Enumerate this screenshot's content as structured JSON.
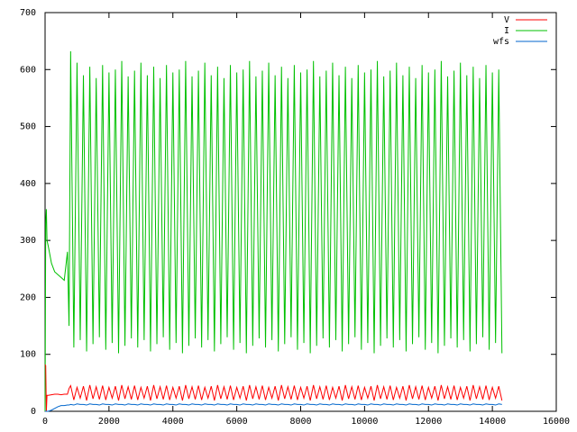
{
  "chart_data": {
    "type": "line",
    "x": [
      0,
      20,
      40,
      60,
      100,
      200,
      300,
      400,
      500,
      600,
      700,
      750,
      800,
      900,
      1000,
      1100,
      1200,
      1300,
      1400,
      1500,
      1600,
      1700,
      1800,
      1900,
      2000,
      2100,
      2200,
      2300,
      2400,
      2500,
      2600,
      2700,
      2800,
      2900,
      3000,
      3100,
      3200,
      3300,
      3400,
      3500,
      3600,
      3700,
      3800,
      3900,
      4000,
      4100,
      4200,
      4300,
      4400,
      4500,
      4600,
      4700,
      4800,
      4900,
      5000,
      5100,
      5200,
      5300,
      5400,
      5500,
      5600,
      5700,
      5800,
      5900,
      6000,
      6100,
      6200,
      6300,
      6400,
      6500,
      6600,
      6700,
      6800,
      6900,
      7000,
      7100,
      7200,
      7300,
      7400,
      7500,
      7600,
      7700,
      7800,
      7900,
      8000,
      8100,
      8200,
      8300,
      8400,
      8500,
      8600,
      8700,
      8800,
      8900,
      9000,
      9100,
      9200,
      9300,
      9400,
      9500,
      9600,
      9700,
      9800,
      9900,
      10000,
      10100,
      10200,
      10300,
      10400,
      10500,
      10600,
      10700,
      10800,
      10900,
      11000,
      11100,
      11200,
      11300,
      11400,
      11500,
      11600,
      11700,
      11800,
      11900,
      12000,
      12100,
      12200,
      12300,
      12400,
      12500,
      12600,
      12700,
      12800,
      12900,
      13000,
      13100,
      13200,
      13300,
      13400,
      13500,
      13600,
      13700,
      13800,
      13900,
      14000,
      14100,
      14200,
      14300
    ],
    "series": [
      {
        "name": "V",
        "color": "#ff0000",
        "values": [
          82,
          80,
          0,
          28,
          28,
          29,
          30,
          30,
          29,
          30,
          30,
          40,
          45,
          20,
          42,
          23,
          44,
          19,
          46,
          22,
          43,
          21,
          45,
          20,
          42,
          23,
          44,
          19,
          46,
          22,
          43,
          21,
          45,
          20,
          42,
          23,
          44,
          19,
          46,
          22,
          43,
          21,
          45,
          20,
          42,
          23,
          44,
          19,
          46,
          22,
          43,
          21,
          45,
          20,
          42,
          23,
          44,
          19,
          46,
          22,
          43,
          21,
          45,
          20,
          42,
          23,
          44,
          19,
          46,
          22,
          43,
          21,
          45,
          20,
          42,
          23,
          44,
          19,
          46,
          22,
          43,
          21,
          45,
          20,
          42,
          23,
          44,
          19,
          46,
          22,
          43,
          21,
          45,
          20,
          42,
          23,
          44,
          19,
          46,
          22,
          43,
          21,
          45,
          20,
          42,
          23,
          44,
          19,
          46,
          22,
          43,
          21,
          45,
          20,
          42,
          23,
          44,
          19,
          46,
          22,
          43,
          21,
          45,
          20,
          42,
          23,
          44,
          19,
          46,
          22,
          43,
          21,
          45,
          20,
          42,
          23,
          44,
          19,
          46,
          22,
          43,
          21,
          45,
          20,
          42,
          23,
          44,
          19
        ]
      },
      {
        "name": "I",
        "color": "#00c000",
        "values": [
          0,
          330,
          355,
          300,
          290,
          260,
          245,
          240,
          235,
          230,
          280,
          150,
          632,
          112,
          612,
          125,
          590,
          105,
          605,
          118,
          585,
          130,
          608,
          108,
          595,
          120,
          600,
          102,
          615,
          115,
          588,
          128,
          598,
          112,
          612,
          125,
          590,
          105,
          605,
          118,
          585,
          130,
          608,
          108,
          595,
          120,
          600,
          102,
          615,
          115,
          588,
          128,
          598,
          112,
          612,
          125,
          590,
          105,
          605,
          118,
          585,
          130,
          608,
          108,
          595,
          120,
          600,
          102,
          615,
          115,
          588,
          128,
          598,
          112,
          612,
          125,
          590,
          105,
          605,
          118,
          585,
          130,
          608,
          108,
          595,
          120,
          600,
          102,
          615,
          115,
          588,
          128,
          598,
          112,
          612,
          125,
          590,
          105,
          605,
          118,
          585,
          130,
          608,
          108,
          595,
          120,
          600,
          102,
          615,
          115,
          588,
          128,
          598,
          112,
          612,
          125,
          590,
          105,
          605,
          118,
          585,
          130,
          608,
          108,
          595,
          120,
          600,
          102,
          615,
          115,
          588,
          128,
          598,
          112,
          612,
          125,
          590,
          105,
          605,
          118,
          585,
          130,
          608,
          108,
          595,
          120,
          600,
          102
        ]
      },
      {
        "name": "wfs",
        "color": "#0066cc",
        "values": [
          0,
          0,
          0,
          0,
          0,
          2,
          5,
          8,
          10,
          10,
          11,
          11,
          12,
          11,
          13,
          12,
          12,
          11,
          13,
          12,
          12,
          11,
          13,
          12,
          12,
          11,
          13,
          12,
          12,
          11,
          13,
          12,
          12,
          11,
          13,
          12,
          12,
          11,
          13,
          12,
          12,
          11,
          13,
          12,
          12,
          11,
          13,
          12,
          12,
          11,
          13,
          12,
          12,
          11,
          13,
          12,
          12,
          11,
          13,
          12,
          12,
          11,
          13,
          12,
          12,
          11,
          13,
          12,
          12,
          11,
          13,
          12,
          12,
          11,
          13,
          12,
          12,
          11,
          13,
          12,
          12,
          11,
          13,
          12,
          12,
          11,
          13,
          12,
          12,
          11,
          13,
          12,
          12,
          11,
          13,
          12,
          12,
          11,
          13,
          12,
          12,
          11,
          13,
          12,
          12,
          11,
          13,
          12,
          12,
          11,
          13,
          12,
          12,
          11,
          13,
          12,
          12,
          11,
          13,
          12,
          12,
          11,
          13,
          12,
          12,
          11,
          13,
          12,
          12,
          11,
          13,
          12,
          12,
          11,
          13,
          12,
          12,
          11,
          13,
          12,
          12,
          11,
          13,
          12,
          12,
          11,
          13,
          12
        ]
      }
    ],
    "xlim": [
      0,
      16000
    ],
    "xticks": [
      0,
      2000,
      4000,
      6000,
      8000,
      10000,
      12000,
      14000,
      16000
    ],
    "ylim": [
      0,
      700
    ],
    "yticks": [
      0,
      100,
      200,
      300,
      400,
      500,
      600,
      700
    ],
    "legend": "top-right"
  }
}
